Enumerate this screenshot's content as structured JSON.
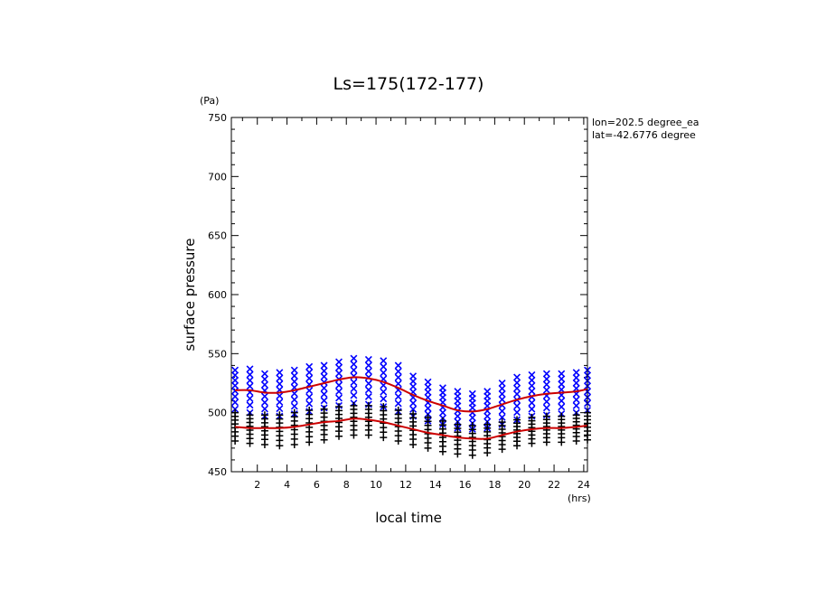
{
  "chart_data": {
    "type": "scatter",
    "title": "Ls=175(172-177)",
    "xlabel": "local time",
    "ylabel": "surface pressure",
    "x_unit": "(hrs)",
    "y_unit": "(Pa)",
    "xlim": [
      0.25,
      24.25
    ],
    "ylim": [
      450,
      750
    ],
    "xticks": [
      2,
      4,
      6,
      8,
      10,
      12,
      14,
      16,
      18,
      20,
      22,
      24
    ],
    "yticks": [
      450,
      500,
      550,
      600,
      650,
      700,
      750
    ],
    "annotations": [
      "lon=202.5 degree_ea",
      "lat=-42.6776 degree"
    ],
    "series": [
      {
        "marker": "x",
        "color": "#0000ff",
        "x": [
          0.5,
          1.5,
          2.5,
          3.5,
          4.5,
          5.5,
          6.5,
          7.5,
          8.5,
          9.5,
          10.5,
          11.5,
          12.5,
          13.5,
          14.5,
          15.5,
          16.5,
          17.5,
          18.5,
          19.5,
          20.5,
          21.5,
          22.5,
          23.5,
          24.25
        ],
        "y_max": [
          536,
          537,
          533,
          534,
          536,
          539,
          540,
          543,
          546,
          545,
          544,
          540,
          531,
          526,
          521,
          518,
          516,
          518,
          525,
          530,
          532,
          533,
          533,
          534,
          536
        ],
        "y_min": [
          503,
          500,
          497,
          497,
          499,
          501,
          504,
          506,
          508,
          507,
          505,
          501,
          497,
          493,
          490,
          487,
          486,
          487,
          490,
          494,
          497,
          498,
          499,
          500,
          502
        ]
      },
      {
        "marker": "+",
        "color": "#000000",
        "x": [
          0.5,
          1.5,
          2.5,
          3.5,
          4.5,
          5.5,
          6.5,
          7.5,
          8.5,
          9.5,
          10.5,
          11.5,
          12.5,
          13.5,
          14.5,
          15.5,
          16.5,
          17.5,
          18.5,
          19.5,
          20.5,
          21.5,
          22.5,
          23.5,
          24.25
        ],
        "y_max": [
          500,
          498,
          498,
          498,
          500,
          502,
          503,
          505,
          506,
          506,
          505,
          502,
          499,
          496,
          493,
          490,
          489,
          490,
          492,
          494,
          496,
          497,
          497,
          498,
          500
        ],
        "y_min": [
          476,
          474,
          473,
          472,
          473,
          475,
          477,
          480,
          481,
          481,
          479,
          476,
          473,
          470,
          467,
          465,
          464,
          466,
          469,
          472,
          474,
          475,
          475,
          476,
          477
        ]
      },
      {
        "marker": "line",
        "color": "#cc0000",
        "x": [
          0.5,
          1.5,
          2.5,
          3.5,
          4.5,
          5.5,
          6.5,
          7.5,
          8.5,
          9.5,
          10.5,
          11.5,
          12.5,
          13.5,
          14.5,
          15.5,
          16.5,
          17.5,
          18.5,
          19.5,
          20.5,
          21.5,
          22.5,
          23.5,
          24.25
        ],
        "y": [
          519,
          519,
          517,
          517,
          519,
          522,
          525,
          528,
          530,
          529,
          526,
          521,
          515,
          510,
          506,
          502,
          501,
          503,
          507,
          511,
          514,
          516,
          517,
          518,
          520
        ]
      },
      {
        "marker": "line",
        "color": "#cc0000",
        "x": [
          0.5,
          1.5,
          2.5,
          3.5,
          4.5,
          5.5,
          6.5,
          7.5,
          8.5,
          9.5,
          10.5,
          11.5,
          12.5,
          13.5,
          14.5,
          15.5,
          16.5,
          17.5,
          18.5,
          19.5,
          20.5,
          21.5,
          22.5,
          23.5,
          24.25
        ],
        "y": [
          488,
          487,
          487,
          487,
          488,
          490,
          492,
          493,
          495,
          494,
          492,
          489,
          486,
          483,
          481,
          479,
          478,
          478,
          481,
          484,
          486,
          487,
          487,
          488,
          489
        ]
      }
    ]
  }
}
